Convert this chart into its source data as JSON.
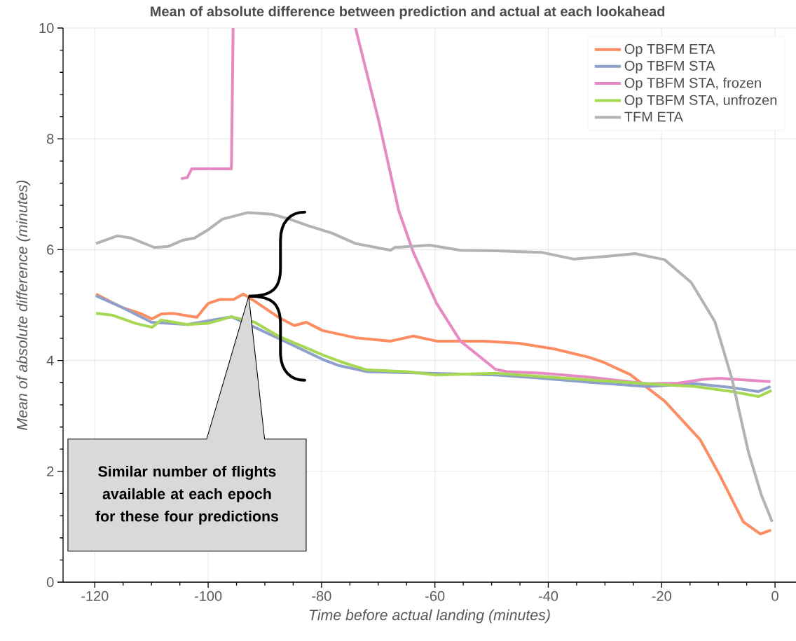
{
  "chart_data": {
    "type": "line",
    "title": "Mean of absolute difference between prediction and actual at each lookahead",
    "xlabel": "Time before actual landing (minutes)",
    "ylabel": "Mean of absolute difference (minutes)",
    "xlim": [
      -125.6,
      3.7
    ],
    "ylim": [
      0,
      10
    ],
    "xticks": [
      -120,
      -100,
      -80,
      -60,
      -40,
      -20,
      0
    ],
    "yticks": [
      0,
      2,
      4,
      6,
      8,
      10
    ],
    "grid": true,
    "legend": "top right",
    "marker": "none",
    "line_style": "solid",
    "annotations": [
      "Similar number of flights available at each epoch for these four predictions"
    ],
    "series": [
      {
        "name": "Op TBFM ETA",
        "color": "#fc8d62",
        "x": [
          -119.8,
          -117,
          -115,
          -112,
          -109.9,
          -108.3,
          -106.2,
          -102,
          -100,
          -98,
          -95.5,
          -93.8,
          -91.8,
          -87.6,
          -84.8,
          -82.7,
          -79.8,
          -74,
          -67.8,
          -63.8,
          -59.7,
          -51.4,
          -45.2,
          -39,
          -32.9,
          -30.3,
          -25.6,
          -19.5,
          -13.2,
          -9.7,
          -5.6,
          -2.6,
          -0.7
        ],
        "values": [
          5.2,
          5.05,
          4.95,
          4.85,
          4.75,
          4.84,
          4.85,
          4.78,
          5.03,
          5.1,
          5.1,
          5.2,
          5.07,
          4.78,
          4.63,
          4.69,
          4.54,
          4.41,
          4.35,
          4.44,
          4.35,
          4.35,
          4.31,
          4.21,
          4.06,
          3.97,
          3.75,
          3.27,
          2.57,
          1.92,
          1.09,
          0.87,
          0.94
        ]
      },
      {
        "name": "Op TBFM STA",
        "color": "#8da0cb",
        "x": [
          -119.8,
          -115,
          -110,
          -103.7,
          -95.9,
          -91.8,
          -87.6,
          -79.8,
          -77,
          -72,
          -49.3,
          -41.1,
          -32.9,
          -22.6,
          -14,
          -7.6,
          -2.9,
          -0.8
        ],
        "values": [
          5.17,
          4.95,
          4.69,
          4.65,
          4.79,
          4.6,
          4.4,
          4.02,
          3.91,
          3.8,
          3.74,
          3.68,
          3.61,
          3.53,
          3.58,
          3.51,
          3.44,
          3.53
        ]
      },
      {
        "name": "Op TBFM STA, frozen",
        "color": "#e78ac3",
        "x": [
          -104.8,
          -103.7,
          -102.9,
          -95.9,
          -95.6,
          -85,
          -74,
          -69.9,
          -66.4,
          -63.8,
          -59.7,
          -55.5,
          -49.3,
          -47.3,
          -41.1,
          -32.9,
          -22.6,
          -17.1,
          -12.7,
          -9.8,
          -0.8
        ],
        "values": [
          7.28,
          7.3,
          7.46,
          7.46,
          10,
          null,
          10,
          8.32,
          6.71,
          5.95,
          5.03,
          4.35,
          3.84,
          3.8,
          3.77,
          3.7,
          3.58,
          3.59,
          3.66,
          3.68,
          3.62
        ]
      },
      {
        "name": "Op TBFM STA, unfrozen",
        "color": "#a6d854",
        "x": [
          -119.8,
          -117,
          -112.8,
          -109.9,
          -108.3,
          -103.7,
          -100,
          -95.9,
          -91.8,
          -87.6,
          -79.8,
          -76.1,
          -72,
          -65,
          -59.7,
          -49.3,
          -32.9,
          -22.6,
          -14,
          -7.6,
          -2.9,
          -0.6
        ],
        "values": [
          4.85,
          4.82,
          4.67,
          4.6,
          4.73,
          4.65,
          4.67,
          4.79,
          4.69,
          4.44,
          4.1,
          3.96,
          3.83,
          3.8,
          3.74,
          3.77,
          3.65,
          3.58,
          3.53,
          3.44,
          3.35,
          3.46
        ]
      },
      {
        "name": "TFM ETA",
        "color": "#b3b3b3",
        "x": [
          -119.8,
          -116,
          -113.6,
          -109.5,
          -107,
          -104.5,
          -102.4,
          -100,
          -97.5,
          -93,
          -88.8,
          -85.6,
          -82.3,
          -78.2,
          -74,
          -67.8,
          -67.1,
          -60.9,
          -55.5,
          -49.3,
          -41.1,
          -35.5,
          -29.8,
          -24.7,
          -19.5,
          -14.8,
          -10.6,
          -7.6,
          -4.7,
          -2.4,
          -0.5
        ],
        "values": [
          6.11,
          6.25,
          6.21,
          6.04,
          6.06,
          6.17,
          6.21,
          6.36,
          6.55,
          6.67,
          6.64,
          6.55,
          6.43,
          6.3,
          6.11,
          5.99,
          6.04,
          6.08,
          5.99,
          5.98,
          5.95,
          5.83,
          5.88,
          5.93,
          5.82,
          5.41,
          4.7,
          3.67,
          2.35,
          1.57,
          1.09
        ]
      }
    ]
  }
}
